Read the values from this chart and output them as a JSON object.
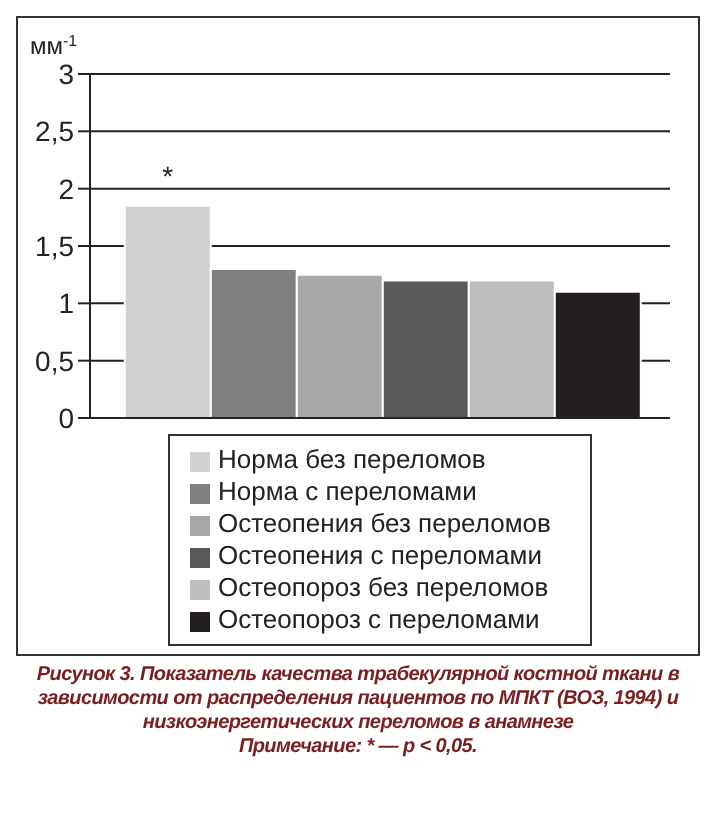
{
  "chart_data": {
    "type": "bar",
    "title": "Рисунок 3. Показатель качества трабекулярной костной ткани в зависимости от распределения пациентов по МПКТ (ВОЗ, 1994) и низкоэнергетических переломов в анамнезе",
    "ylabel": "мм$^{-1}$",
    "categories": [
      null
    ],
    "series": [
      {
        "name": "Норма без переломов",
        "color": "#d0d0d0",
        "values": [
          1.85
        ]
      },
      {
        "name": "Норма с переломами",
        "color": "#808080",
        "values": [
          1.3
        ]
      },
      {
        "name": "Остеопения без переломов",
        "color": "#a8a8a8",
        "values": [
          1.25
        ]
      },
      {
        "name": "Остеопения с переломами",
        "color": "#595959",
        "values": [
          1.2
        ]
      },
      {
        "name": "Остеопороз без переломов",
        "color": "#bdbdbd",
        "values": [
          1.2
        ]
      },
      {
        "name": "Остеопороз с переломами",
        "color": "#231f20",
        "values": [
          1.1
        ]
      }
    ],
    "ylim": [
      0,
      3
    ],
    "yticks": [
      0,
      {
        "value": 0.5,
        "label": "0,5"
      },
      1,
      {
        "value": 1.5,
        "label": "1,5"
      },
      2,
      {
        "value": 2.5,
        "label": "2,5"
      },
      3
    ],
    "grid": "y",
    "legend": "bottom",
    "annotations": [
      "*",
      "Примечание: * — p < 0,05."
    ]
  }
}
